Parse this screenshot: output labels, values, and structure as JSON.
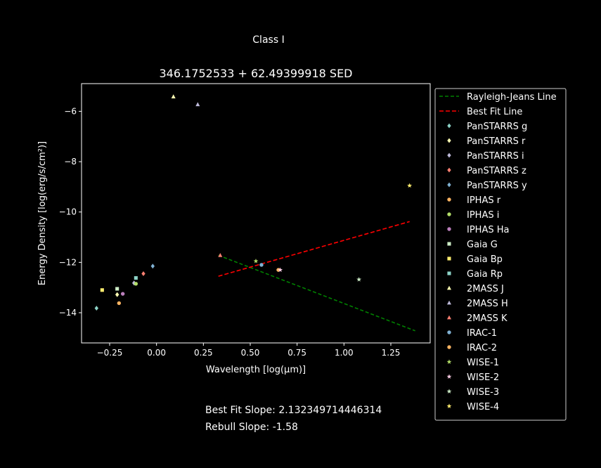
{
  "figure": {
    "suptitle": "Class I",
    "best_fit_label": "Best Fit Slope: 2.132349714446314",
    "rebull_label": "Rebull Slope: -1.58"
  },
  "chart_data": {
    "type": "scatter",
    "title": "346.1752533 + 62.49399918 SED",
    "xlabel": "Wavelength [log(μm)]",
    "ylabel": "Energy Density [log(erg/s/cm²)]",
    "xlim": [
      -0.4,
      1.46
    ],
    "ylim": [
      -15.2,
      -4.9
    ],
    "xticks": [
      -0.25,
      0.0,
      0.25,
      0.5,
      0.75,
      1.0,
      1.25
    ],
    "xtick_labels": [
      "−0.25",
      "0.00",
      "0.25",
      "0.50",
      "0.75",
      "1.00",
      "1.25"
    ],
    "yticks": [
      -14,
      -12,
      -10,
      -8,
      -6
    ],
    "ytick_labels": [
      "−14",
      "−12",
      "−10",
      "−8",
      "−6"
    ],
    "grid": false,
    "legend_position": "outside-right",
    "lines": [
      {
        "name": "Rayleigh-Jeans Line",
        "color": "#008000",
        "dash": "5,3",
        "x": [
          0.33,
          1.38
        ],
        "y": [
          -11.72,
          -14.72
        ]
      },
      {
        "name": "Best Fit Line",
        "color": "#ff0000",
        "dash": "6,3",
        "x": [
          0.33,
          1.35
        ],
        "y": [
          -12.55,
          -10.38
        ]
      }
    ],
    "series": [
      {
        "name": "PanSTARRS g",
        "marker": "diamond",
        "color": "#8dd3c7",
        "x": [
          -0.32
        ],
        "y": [
          -13.82
        ]
      },
      {
        "name": "PanSTARRS r",
        "marker": "diamond",
        "color": "#ffffb3",
        "x": [
          -0.21
        ],
        "y": [
          -13.28
        ]
      },
      {
        "name": "PanSTARRS i",
        "marker": "diamond",
        "color": "#bebada",
        "x": [
          -0.12
        ],
        "y": [
          -12.82
        ]
      },
      {
        "name": "PanSTARRS z",
        "marker": "diamond",
        "color": "#fb8072",
        "x": [
          -0.07
        ],
        "y": [
          -12.45
        ]
      },
      {
        "name": "PanSTARRS y",
        "marker": "diamond",
        "color": "#80b1d3",
        "x": [
          -0.02
        ],
        "y": [
          -12.15
        ]
      },
      {
        "name": "IPHAS r",
        "marker": "circle",
        "color": "#fdb462",
        "x": [
          -0.2
        ],
        "y": [
          -13.62
        ]
      },
      {
        "name": "IPHAS i",
        "marker": "circle",
        "color": "#b3de69",
        "x": [
          -0.11
        ],
        "y": [
          -12.85
        ]
      },
      {
        "name": "IPHAS Ha",
        "marker": "circle",
        "color": "#bc80bd",
        "x": [
          -0.18
        ],
        "y": [
          -13.25
        ]
      },
      {
        "name": "Gaia G",
        "marker": "square",
        "color": "#ccebc5",
        "x": [
          -0.21
        ],
        "y": [
          -13.05
        ]
      },
      {
        "name": "Gaia Bp",
        "marker": "square",
        "color": "#ffed6f",
        "x": [
          -0.29
        ],
        "y": [
          -13.1
        ]
      },
      {
        "name": "Gaia Rp",
        "marker": "square",
        "color": "#8dd3c7",
        "x": [
          -0.11
        ],
        "y": [
          -12.62
        ]
      },
      {
        "name": "2MASS J",
        "marker": "triangle",
        "color": "#ffffb3",
        "x": [
          0.09
        ],
        "y": [
          -5.42
        ]
      },
      {
        "name": "2MASS H",
        "marker": "triangle",
        "color": "#bebada",
        "x": [
          0.22
        ],
        "y": [
          -5.73
        ]
      },
      {
        "name": "2MASS K",
        "marker": "triangle",
        "color": "#fb8072",
        "x": [
          0.34
        ],
        "y": [
          -11.72
        ]
      },
      {
        "name": "IRAC-1",
        "marker": "circle",
        "color": "#80b1d3",
        "x": [
          0.56
        ],
        "y": [
          -12.1
        ]
      },
      {
        "name": "IRAC-2",
        "marker": "circle",
        "color": "#fdb462",
        "x": [
          0.65
        ],
        "y": [
          -12.3
        ]
      },
      {
        "name": "WISE-1",
        "marker": "star",
        "color": "#b3de69",
        "x": [
          0.53
        ],
        "y": [
          -11.95
        ]
      },
      {
        "name": "WISE-2",
        "marker": "star",
        "color": "#fccde5",
        "x": [
          0.66
        ],
        "y": [
          -12.3
        ]
      },
      {
        "name": "WISE-3",
        "marker": "star",
        "color": "#ccebc5",
        "x": [
          1.08
        ],
        "y": [
          -12.68
        ]
      },
      {
        "name": "WISE-4",
        "marker": "star",
        "color": "#ffed6f",
        "x": [
          1.35
        ],
        "y": [
          -8.95
        ]
      }
    ]
  }
}
